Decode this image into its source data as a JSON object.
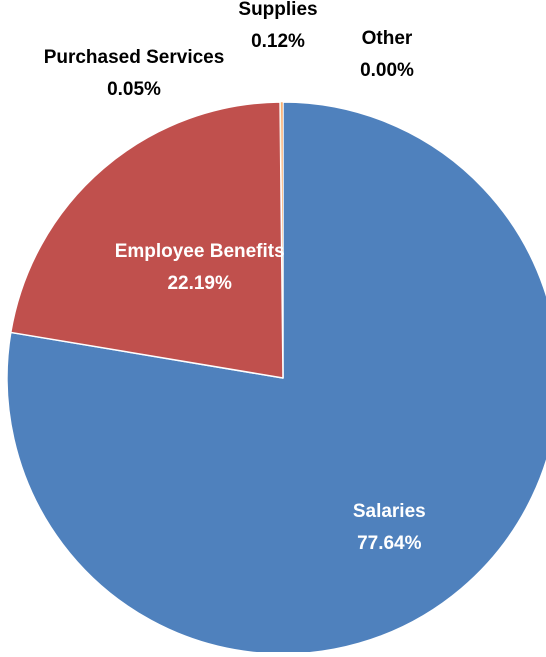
{
  "chart_data": {
    "type": "pie",
    "title": "",
    "start_angle_deg": 0,
    "direction": "clockwise",
    "slices": [
      {
        "label": "Salaries",
        "value": 77.64,
        "value_label": "77.64%",
        "color": "#4F81BD",
        "label_color": "#ffffff",
        "label_inside": true
      },
      {
        "label": "Employee Benefits",
        "value": 22.19,
        "value_label": "22.19%",
        "color": "#C0504D",
        "label_color": "#ffffff",
        "label_inside": true
      },
      {
        "label": "Purchased Services",
        "value": 0.05,
        "value_label": "0.05%",
        "color": "#9BBB59",
        "label_color": "#000000",
        "label_inside": false
      },
      {
        "label": "Supplies",
        "value": 0.12,
        "value_label": "0.12%",
        "color": "#F79646",
        "label_color": "#000000",
        "label_inside": false
      },
      {
        "label": "Other",
        "value": 0.0,
        "value_label": "0.00%",
        "color": "#8064A2",
        "label_color": "#000000",
        "label_inside": false
      }
    ],
    "slice_border_color": "#ffffff"
  }
}
